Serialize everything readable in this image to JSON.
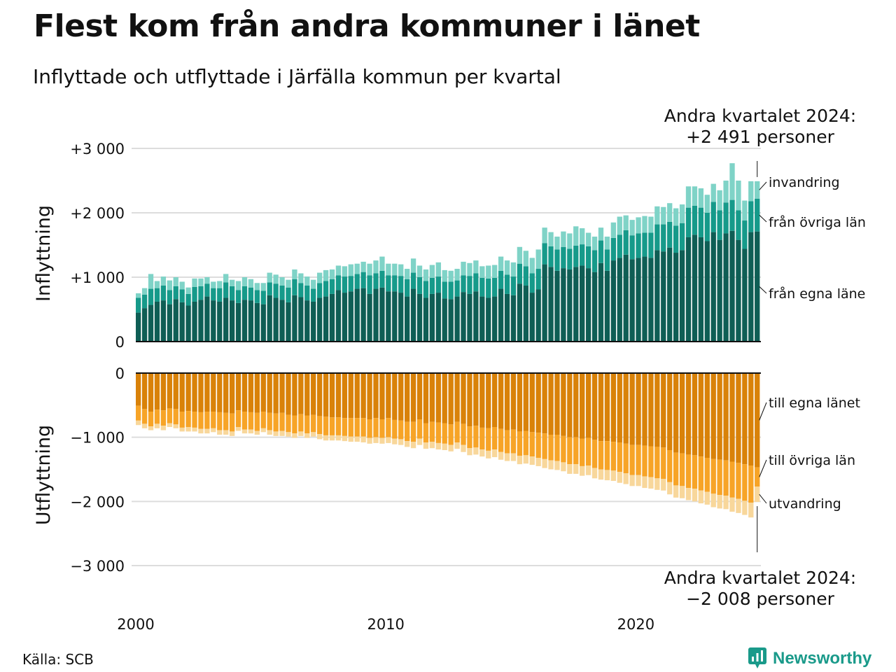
{
  "title": "Flest kom från andra kommuner i länet",
  "subtitle": "Inflyttade och utflyttade i Järfälla kommun per kvartal",
  "source": "Källa: SCB",
  "brand": "Newsworthy",
  "colors": {
    "in_egna": "#0f5e55",
    "in_ovriga": "#169a8a",
    "in_invandring": "#7fd3c7",
    "out_egna": "#d98209",
    "out_ovriga": "#f7a427",
    "out_utvandring": "#f8d79b",
    "grid": "#dddddd",
    "brand": "#1a9a8a"
  },
  "chart_data": {
    "type": "bar",
    "stacked": true,
    "x_axis": {
      "ticks": [
        "2000",
        "2010",
        "2020"
      ],
      "start": "2000 Q1",
      "end": "2024 Q2"
    },
    "panels": [
      {
        "name": "Inflyttning",
        "ylabel": "Inflyttning",
        "yticks": [
          "+3 000",
          "+2 000",
          "+1 000",
          "0"
        ],
        "ytick_values": [
          3000,
          2000,
          1000,
          0
        ],
        "ylim": [
          0,
          3000
        ],
        "grid": true,
        "series": [
          {
            "name": "från egna länet",
            "label": "från egna läne",
            "color_key": "in_egna"
          },
          {
            "name": "från övriga län",
            "label": "från övriga län",
            "color_key": "in_ovriga"
          },
          {
            "name": "invandring",
            "label": "invandring",
            "color_key": "in_invandring"
          }
        ],
        "annotation": {
          "line1": "Andra kvartalet 2024:",
          "line2": "+2 491 personer"
        }
      },
      {
        "name": "Utflyttning",
        "ylabel": "Utflyttning",
        "yticks": [
          "0",
          "−1 000",
          "−2 000",
          "−3 000"
        ],
        "ytick_values": [
          0,
          -1000,
          -2000,
          -3000
        ],
        "ylim": [
          -3000,
          0
        ],
        "grid": true,
        "series": [
          {
            "name": "till egna länet",
            "label": "till egna länet",
            "color_key": "out_egna"
          },
          {
            "name": "till övriga län",
            "label": "till övriga län",
            "color_key": "out_ovriga"
          },
          {
            "name": "utvandring",
            "label": "utvandring",
            "color_key": "out_utvandring"
          }
        ],
        "annotation": {
          "line1": "Andra kvartalet 2024:",
          "line2": "−2 008 personer"
        }
      }
    ],
    "in_egna": [
      450,
      520,
      570,
      620,
      640,
      580,
      660,
      610,
      560,
      620,
      650,
      700,
      640,
      620,
      680,
      640,
      600,
      650,
      640,
      600,
      580,
      720,
      680,
      650,
      610,
      720,
      690,
      640,
      620,
      680,
      700,
      740,
      800,
      760,
      780,
      820,
      830,
      740,
      820,
      840,
      780,
      780,
      760,
      700,
      820,
      740,
      680,
      740,
      760,
      670,
      660,
      700,
      770,
      740,
      780,
      700,
      680,
      700,
      820,
      740,
      720,
      900,
      870,
      760,
      810,
      1200,
      1160,
      1100,
      1140,
      1120,
      1160,
      1180,
      1140,
      1080,
      1220,
      1100,
      1260,
      1300,
      1350,
      1280,
      1300,
      1320,
      1300,
      1420,
      1400,
      1460,
      1380,
      1420,
      1620,
      1660,
      1620,
      1560,
      1700,
      1580,
      1680,
      1720,
      1580,
      1440,
      1700,
      1710
    ],
    "in_ovriga": [
      230,
      210,
      250,
      210,
      230,
      220,
      200,
      200,
      180,
      230,
      210,
      200,
      190,
      210,
      240,
      220,
      200,
      210,
      200,
      200,
      210,
      200,
      220,
      220,
      230,
      250,
      220,
      230,
      200,
      230,
      240,
      230,
      230,
      250,
      240,
      230,
      250,
      290,
      240,
      260,
      250,
      250,
      260,
      270,
      250,
      260,
      260,
      250,
      250,
      260,
      270,
      250,
      260,
      280,
      280,
      290,
      300,
      290,
      280,
      300,
      290,
      310,
      300,
      300,
      320,
      330,
      320,
      330,
      330,
      320,
      330,
      330,
      340,
      340,
      350,
      330,
      350,
      360,
      380,
      370,
      380,
      370,
      390,
      400,
      420,
      400,
      420,
      420,
      460,
      450,
      460,
      440,
      470,
      460,
      480,
      480,
      460,
      440,
      480,
      510
    ],
    "in_invandring": [
      70,
      100,
      230,
      110,
      140,
      150,
      140,
      120,
      100,
      130,
      120,
      100,
      100,
      110,
      130,
      100,
      140,
      140,
      130,
      110,
      120,
      150,
      140,
      130,
      120,
      150,
      150,
      140,
      140,
      160,
      170,
      150,
      150,
      160,
      180,
      160,
      160,
      180,
      200,
      220,
      180,
      180,
      180,
      160,
      220,
      180,
      180,
      200,
      220,
      180,
      170,
      180,
      210,
      200,
      200,
      180,
      200,
      200,
      220,
      220,
      220,
      260,
      240,
      240,
      300,
      240,
      220,
      200,
      240,
      240,
      300,
      250,
      210,
      210,
      200,
      200,
      240,
      280,
      230,
      240,
      250,
      260,
      250,
      280,
      270,
      290,
      270,
      290,
      330,
      300,
      300,
      280,
      280,
      310,
      340,
      570,
      460,
      310,
      310,
      270
    ],
    "out_egna": [
      510,
      560,
      600,
      570,
      580,
      550,
      560,
      600,
      590,
      600,
      610,
      600,
      600,
      610,
      620,
      630,
      580,
      600,
      610,
      620,
      600,
      620,
      630,
      620,
      650,
      660,
      640,
      660,
      650,
      670,
      680,
      690,
      690,
      700,
      700,
      700,
      700,
      720,
      700,
      720,
      700,
      730,
      740,
      760,
      760,
      720,
      780,
      760,
      770,
      780,
      800,
      760,
      790,
      830,
      820,
      850,
      860,
      840,
      870,
      890,
      880,
      910,
      900,
      920,
      930,
      940,
      960,
      960,
      980,
      1000,
      1000,
      1020,
      1010,
      1040,
      1060,
      1060,
      1070,
      1080,
      1100,
      1120,
      1120,
      1130,
      1140,
      1150,
      1160,
      1200,
      1240,
      1250,
      1270,
      1280,
      1300,
      1320,
      1340,
      1350,
      1360,
      1380,
      1400,
      1420,
      1440,
      1470
    ],
    "out_ovriga": [
      230,
      230,
      230,
      220,
      240,
      230,
      240,
      250,
      250,
      250,
      260,
      270,
      260,
      280,
      270,
      280,
      260,
      280,
      270,
      280,
      260,
      270,
      280,
      280,
      270,
      280,
      270,
      280,
      270,
      280,
      290,
      280,
      280,
      280,
      290,
      290,
      290,
      290,
      300,
      290,
      300,
      290,
      290,
      300,
      310,
      300,
      300,
      310,
      320,
      320,
      320,
      320,
      330,
      340,
      340,
      340,
      350,
      350,
      360,
      360,
      370,
      380,
      380,
      380,
      390,
      400,
      400,
      410,
      410,
      420,
      420,
      430,
      430,
      440,
      440,
      450,
      450,
      460,
      460,
      470,
      470,
      480,
      480,
      490,
      490,
      500,
      510,
      510,
      520,
      520,
      530,
      530,
      540,
      550,
      550,
      560,
      560,
      570,
      580,
      300
    ],
    "out_utvandring": [
      70,
      70,
      60,
      70,
      70,
      60,
      60,
      60,
      70,
      60,
      70,
      70,
      60,
      70,
      70,
      70,
      60,
      60,
      60,
      60,
      60,
      70,
      70,
      80,
      70,
      70,
      70,
      70,
      70,
      80,
      80,
      80,
      80,
      80,
      80,
      80,
      90,
      90,
      90,
      90,
      90,
      90,
      90,
      90,
      100,
      100,
      100,
      100,
      100,
      100,
      100,
      100,
      110,
      110,
      110,
      110,
      120,
      120,
      120,
      120,
      120,
      130,
      130,
      130,
      130,
      140,
      140,
      140,
      140,
      150,
      150,
      150,
      150,
      160,
      160,
      160,
      160,
      170,
      170,
      170,
      170,
      180,
      180,
      180,
      180,
      190,
      190,
      190,
      190,
      200,
      200,
      200,
      210,
      210,
      210,
      220,
      220,
      220,
      230,
      238
    ]
  }
}
